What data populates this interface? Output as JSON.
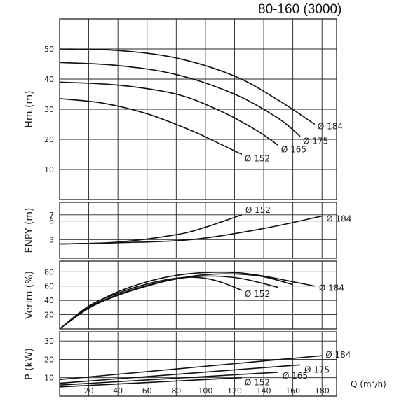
{
  "title": "80-160 (3000)",
  "x_axis": {
    "label": "Q (m³/h)",
    "range": [
      0,
      190
    ],
    "ticks": [
      20,
      40,
      60,
      80,
      100,
      120,
      140,
      160,
      180
    ],
    "tick_labels": [
      "20",
      "40",
      "60",
      "80",
      "100",
      "120",
      "140",
      "160",
      "180"
    ]
  },
  "chart_data": [
    {
      "type": "line",
      "ylabel": "Hm (m)",
      "ylim": [
        0,
        60
      ],
      "yticks": [
        10,
        20,
        30,
        40,
        50
      ],
      "ytick_labels": [
        "10",
        "20",
        "30",
        "40",
        "50"
      ],
      "grid": true,
      "series": [
        {
          "name": "Ø 152",
          "x": [
            0,
            30,
            60,
            90,
            110,
            125
          ],
          "y": [
            33.5,
            32,
            28.5,
            23,
            18.5,
            15
          ]
        },
        {
          "name": "Ø 165",
          "x": [
            0,
            40,
            80,
            110,
            135,
            150
          ],
          "y": [
            39,
            38,
            35,
            29.5,
            23,
            18
          ]
        },
        {
          "name": "Ø 175",
          "x": [
            0,
            40,
            80,
            120,
            150,
            165
          ],
          "y": [
            45.5,
            44.5,
            41.5,
            35,
            27,
            21
          ]
        },
        {
          "name": "Ø 184",
          "x": [
            0,
            40,
            80,
            120,
            150,
            175
          ],
          "y": [
            50,
            49.5,
            47,
            41,
            33,
            25
          ]
        }
      ]
    },
    {
      "type": "line",
      "ylabel": "ENPY (m)",
      "ylim": [
        0,
        9
      ],
      "yticks": [
        3,
        6,
        7
      ],
      "ytick_labels": [
        "3",
        "6",
        "7"
      ],
      "grid": true,
      "series": [
        {
          "name": "Ø 152",
          "x": [
            0,
            40,
            80,
            100,
            125
          ],
          "y": [
            2.3,
            2.6,
            3.8,
            5,
            7
          ]
        },
        {
          "name": "Ø 184",
          "x": [
            0,
            40,
            90,
            140,
            180
          ],
          "y": [
            2.3,
            2.5,
            3,
            4.8,
            6.8
          ]
        }
      ]
    },
    {
      "type": "line",
      "ylabel": "Verim (%)",
      "ylim": [
        0,
        95
      ],
      "yticks": [
        20,
        40,
        60,
        80
      ],
      "ytick_labels": [
        "20",
        "40",
        "60",
        "80"
      ],
      "grid": true,
      "series": [
        {
          "name": "Ø 152",
          "x": [
            0,
            20,
            40,
            60,
            80,
            95,
            110,
            125
          ],
          "y": [
            0,
            32,
            50,
            63,
            71,
            72,
            66,
            54
          ]
        },
        {
          "name": "Ø 165",
          "x": [
            0,
            20,
            40,
            60,
            80,
            100,
            120,
            135,
            150
          ],
          "y": [
            0,
            30,
            48,
            61,
            70,
            74,
            72,
            66,
            58
          ]
        },
        {
          "name": "Ø 175",
          "x": [
            0,
            20,
            40,
            60,
            80,
            100,
            120,
            140,
            160
          ],
          "y": [
            0,
            29,
            47,
            60,
            70,
            76,
            77,
            73,
            62
          ]
        },
        {
          "name": "Ø 184",
          "x": [
            0,
            20,
            40,
            60,
            80,
            100,
            120,
            140,
            160,
            175
          ],
          "y": [
            0,
            31,
            52,
            66,
            75,
            79,
            79,
            74,
            66,
            60
          ]
        }
      ]
    },
    {
      "type": "line",
      "ylabel": "P (kW)",
      "ylim": [
        0,
        35
      ],
      "yticks": [
        10,
        20,
        30
      ],
      "ytick_labels": [
        "10",
        "20",
        "30"
      ],
      "grid": true,
      "series": [
        {
          "name": "Ø 152",
          "x": [
            0,
            125
          ],
          "y": [
            5,
            10
          ]
        },
        {
          "name": "Ø 165",
          "x": [
            0,
            150
          ],
          "y": [
            6,
            13
          ]
        },
        {
          "name": "Ø 175",
          "x": [
            0,
            165
          ],
          "y": [
            7,
            17
          ]
        },
        {
          "name": "Ø 184",
          "x": [
            0,
            180
          ],
          "y": [
            9,
            22
          ]
        }
      ]
    }
  ]
}
